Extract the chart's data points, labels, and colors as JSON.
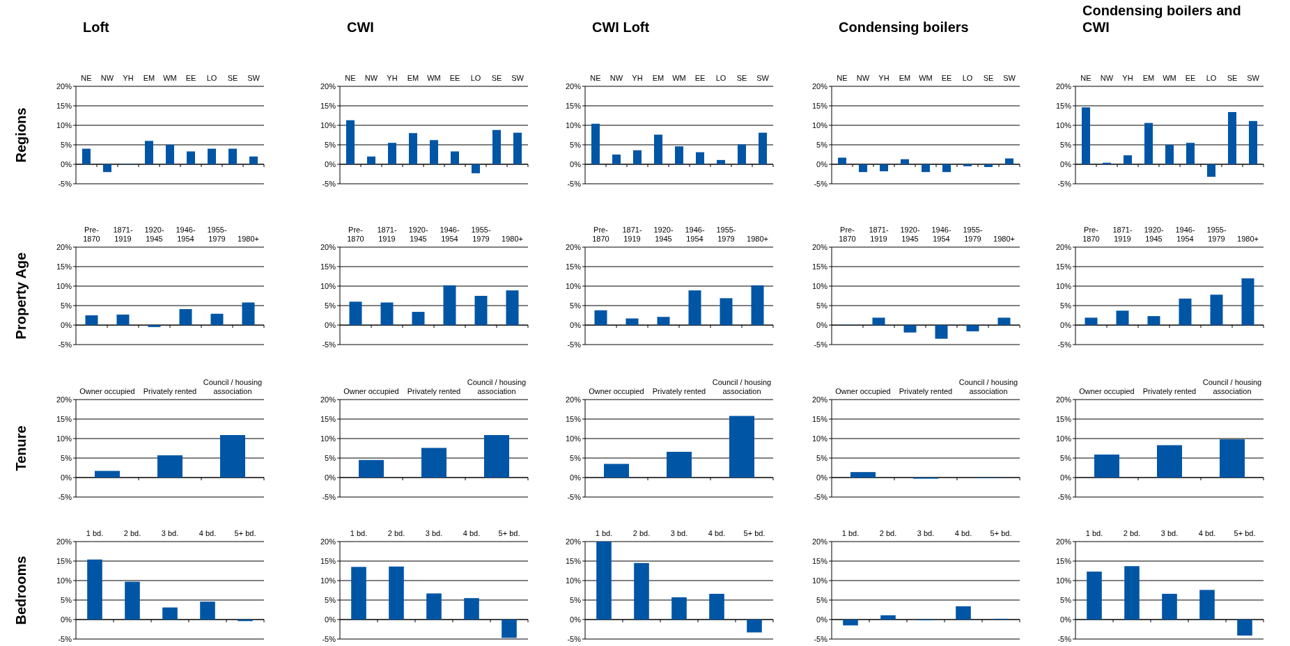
{
  "chart_data": [
    {
      "type": "bar",
      "title": "Loft",
      "ylabel": "Regions",
      "categories": [
        "NE",
        "NW",
        "YH",
        "EM",
        "WM",
        "EE",
        "LO",
        "SE",
        "SW"
      ],
      "values": [
        4,
        -2,
        0.1,
        6,
        5,
        3.3,
        4,
        4,
        2
      ],
      "color": "#0055a5",
      "ylim": [
        -5,
        20
      ],
      "yticks": [
        {
          "value": -5,
          "label": "-5%"
        },
        {
          "value": 0,
          "label": "0%"
        },
        {
          "value": 5,
          "label": "5%"
        },
        {
          "value": 10,
          "label": "10%"
        },
        {
          "value": 15,
          "label": "15%"
        },
        {
          "value": 20,
          "label": "20%"
        }
      ],
      "grid": true
    },
    {
      "type": "bar",
      "title": "CWI",
      "categories": [
        "NE",
        "NW",
        "YH",
        "EM",
        "WM",
        "EE",
        "LO",
        "SE",
        "SW"
      ],
      "values": [
        11.3,
        2,
        5.5,
        8,
        6.2,
        3.3,
        -2.3,
        8.8,
        8.1
      ],
      "color": "#0055a5",
      "ylim": [
        -5,
        20
      ],
      "yticks": [
        {
          "value": -5,
          "label": "-5%"
        },
        {
          "value": 0,
          "label": "0%"
        },
        {
          "value": 5,
          "label": "5%"
        },
        {
          "value": 10,
          "label": "10%"
        },
        {
          "value": 15,
          "label": "15%"
        },
        {
          "value": 20,
          "label": "20%"
        }
      ],
      "grid": true
    },
    {
      "type": "bar",
      "title": "CWI Loft",
      "categories": [
        "NE",
        "NW",
        "YH",
        "EM",
        "WM",
        "EE",
        "LO",
        "SE",
        "SW"
      ],
      "values": [
        10.4,
        2.5,
        3.6,
        7.6,
        4.6,
        3.1,
        1.1,
        5.1,
        8.1
      ],
      "color": "#0055a5",
      "ylim": [
        -5,
        20
      ],
      "yticks": [
        {
          "value": -5,
          "label": "-5%"
        },
        {
          "value": 0,
          "label": "0%"
        },
        {
          "value": 5,
          "label": "5%"
        },
        {
          "value": 10,
          "label": "10%"
        },
        {
          "value": 15,
          "label": "15%"
        },
        {
          "value": 20,
          "label": "20%"
        }
      ],
      "grid": true
    },
    {
      "type": "bar",
      "title": "Condensing boilers",
      "categories": [
        "NE",
        "NW",
        "YH",
        "EM",
        "WM",
        "EE",
        "LO",
        "SE",
        "SW"
      ],
      "values": [
        1.7,
        -2,
        -1.8,
        1.3,
        -2,
        -2,
        -0.5,
        -0.7,
        1.5
      ],
      "color": "#0055a5",
      "ylim": [
        -5,
        20
      ],
      "yticks": [
        {
          "value": -5,
          "label": "-5%"
        },
        {
          "value": 0,
          "label": "0%"
        },
        {
          "value": 5,
          "label": "5%"
        },
        {
          "value": 10,
          "label": "10%"
        },
        {
          "value": 15,
          "label": "15%"
        },
        {
          "value": 20,
          "label": "20%"
        }
      ],
      "grid": true
    },
    {
      "type": "bar",
      "title": "Condensing boilers and CWI",
      "categories": [
        "NE",
        "NW",
        "YH",
        "EM",
        "WM",
        "EE",
        "LO",
        "SE",
        "SW"
      ],
      "values": [
        14.6,
        0.4,
        2.3,
        10.6,
        5,
        5.5,
        -3.2,
        13.4,
        11.1
      ],
      "color": "#0055a5",
      "ylim": [
        -5,
        20
      ],
      "yticks": [
        {
          "value": -5,
          "label": "-5%"
        },
        {
          "value": 0,
          "label": "0%"
        },
        {
          "value": 5,
          "label": "5%"
        },
        {
          "value": 10,
          "label": "10%"
        },
        {
          "value": 15,
          "label": "15%"
        },
        {
          "value": 20,
          "label": "20%"
        }
      ],
      "grid": true
    },
    {
      "type": "bar",
      "ylabel": "Property Age",
      "categories": [
        "Pre-\n1870",
        "1871-\n1919",
        "1920-\n1945",
        "1946-\n1954",
        "1955-\n1979",
        "1980+"
      ],
      "values": [
        2.5,
        2.7,
        -0.5,
        4.1,
        2.9,
        5.8
      ],
      "color": "#0055a5",
      "ylim": [
        -5,
        20
      ],
      "yticks": [
        {
          "value": -5,
          "label": "-5%"
        },
        {
          "value": 0,
          "label": "0%"
        },
        {
          "value": 5,
          "label": "5%"
        },
        {
          "value": 10,
          "label": "10%"
        },
        {
          "value": 15,
          "label": "15%"
        },
        {
          "value": 20,
          "label": "20%"
        }
      ],
      "grid": true
    },
    {
      "type": "bar",
      "categories": [
        "Pre-\n1870",
        "1871-\n1919",
        "1920-\n1945",
        "1946-\n1954",
        "1955-\n1979",
        "1980+"
      ],
      "values": [
        6,
        5.8,
        3.4,
        10.2,
        7.5,
        8.9
      ],
      "color": "#0055a5",
      "ylim": [
        -5,
        20
      ],
      "yticks": [
        {
          "value": -5,
          "label": "-5%"
        },
        {
          "value": 0,
          "label": "0%"
        },
        {
          "value": 5,
          "label": "5%"
        },
        {
          "value": 10,
          "label": "10%"
        },
        {
          "value": 15,
          "label": "15%"
        },
        {
          "value": 20,
          "label": "20%"
        }
      ],
      "grid": true
    },
    {
      "type": "bar",
      "categories": [
        "Pre-\n1870",
        "1871-\n1919",
        "1920-\n1945",
        "1946-\n1954",
        "1955-\n1979",
        "1980+"
      ],
      "values": [
        3.8,
        1.7,
        2.1,
        8.9,
        6.9,
        10.2
      ],
      "color": "#0055a5",
      "ylim": [
        -5,
        20
      ],
      "yticks": [
        {
          "value": -5,
          "label": "-5%"
        },
        {
          "value": 0,
          "label": "0%"
        },
        {
          "value": 5,
          "label": "5%"
        },
        {
          "value": 10,
          "label": "10%"
        },
        {
          "value": 15,
          "label": "15%"
        },
        {
          "value": 20,
          "label": "20%"
        }
      ],
      "grid": true
    },
    {
      "type": "bar",
      "categories": [
        "Pre-\n1870",
        "1871-\n1919",
        "1920-\n1945",
        "1946-\n1954",
        "1955-\n1979",
        "1980+"
      ],
      "values": [
        0.1,
        1.9,
        -1.9,
        -3.5,
        -1.6,
        1.9
      ],
      "color": "#0055a5",
      "ylim": [
        -5,
        20
      ],
      "yticks": [
        {
          "value": -5,
          "label": "-5%"
        },
        {
          "value": 0,
          "label": "0%"
        },
        {
          "value": 5,
          "label": "5%"
        },
        {
          "value": 10,
          "label": "10%"
        },
        {
          "value": 15,
          "label": "15%"
        },
        {
          "value": 20,
          "label": "20%"
        }
      ],
      "grid": true
    },
    {
      "type": "bar",
      "categories": [
        "Pre-\n1870",
        "1871-\n1919",
        "1920-\n1945",
        "1946-\n1954",
        "1955-\n1979",
        "1980+"
      ],
      "values": [
        1.9,
        3.7,
        2.3,
        6.8,
        7.8,
        12
      ],
      "color": "#0055a5",
      "ylim": [
        -5,
        20
      ],
      "yticks": [
        {
          "value": -5,
          "label": "-5%"
        },
        {
          "value": 0,
          "label": "0%"
        },
        {
          "value": 5,
          "label": "5%"
        },
        {
          "value": 10,
          "label": "10%"
        },
        {
          "value": 15,
          "label": "15%"
        },
        {
          "value": 20,
          "label": "20%"
        }
      ],
      "grid": true
    },
    {
      "type": "bar",
      "ylabel": "Tenure",
      "categories": [
        "Owner occupied",
        "Privately rented",
        "Council / housing\nassociation"
      ],
      "values": [
        1.7,
        5.7,
        10.9
      ],
      "color": "#0055a5",
      "ylim": [
        -5,
        20
      ],
      "yticks": [
        {
          "value": -5,
          "label": "-5%"
        },
        {
          "value": 0,
          "label": "0%"
        },
        {
          "value": 5,
          "label": "5%"
        },
        {
          "value": 10,
          "label": "10%"
        },
        {
          "value": 15,
          "label": "15%"
        },
        {
          "value": 20,
          "label": "20%"
        }
      ],
      "grid": true
    },
    {
      "type": "bar",
      "categories": [
        "Owner occupied",
        "Privately rented",
        "Council / housing\nassociation"
      ],
      "values": [
        4.5,
        7.6,
        10.9
      ],
      "color": "#0055a5",
      "ylim": [
        -5,
        20
      ],
      "yticks": [
        {
          "value": -5,
          "label": "-5%"
        },
        {
          "value": 0,
          "label": "0%"
        },
        {
          "value": 5,
          "label": "5%"
        },
        {
          "value": 10,
          "label": "10%"
        },
        {
          "value": 15,
          "label": "15%"
        },
        {
          "value": 20,
          "label": "20%"
        }
      ],
      "grid": true
    },
    {
      "type": "bar",
      "categories": [
        "Owner occupied",
        "Privately rented",
        "Council / housing\nassociation"
      ],
      "values": [
        3.5,
        6.6,
        15.8
      ],
      "color": "#0055a5",
      "ylim": [
        -5,
        20
      ],
      "yticks": [
        {
          "value": -5,
          "label": "-5%"
        },
        {
          "value": 0,
          "label": "0%"
        },
        {
          "value": 5,
          "label": "5%"
        },
        {
          "value": 10,
          "label": "10%"
        },
        {
          "value": 15,
          "label": "15%"
        },
        {
          "value": 20,
          "label": "20%"
        }
      ],
      "grid": true
    },
    {
      "type": "bar",
      "categories": [
        "Owner occupied",
        "Privately rented",
        "Council / housing\nassociation"
      ],
      "values": [
        1.4,
        -0.3,
        -0.1
      ],
      "color": "#0055a5",
      "ylim": [
        -5,
        20
      ],
      "yticks": [
        {
          "value": -5,
          "label": "-5%"
        },
        {
          "value": 0,
          "label": "0%"
        },
        {
          "value": 5,
          "label": "5%"
        },
        {
          "value": 10,
          "label": "10%"
        },
        {
          "value": 15,
          "label": "15%"
        },
        {
          "value": 20,
          "label": "20%"
        }
      ],
      "grid": true
    },
    {
      "type": "bar",
      "categories": [
        "Owner occupied",
        "Privately rented",
        "Council / housing\nassociation"
      ],
      "values": [
        5.9,
        8.3,
        9.8
      ],
      "color": "#0055a5",
      "ylim": [
        -5,
        20
      ],
      "yticks": [
        {
          "value": -5,
          "label": "-5%"
        },
        {
          "value": 0,
          "label": "0%"
        },
        {
          "value": 5,
          "label": "5%"
        },
        {
          "value": 10,
          "label": "10%"
        },
        {
          "value": 15,
          "label": "15%"
        },
        {
          "value": 20,
          "label": "20%"
        }
      ],
      "grid": true
    },
    {
      "type": "bar",
      "ylabel": "Bedrooms",
      "categories": [
        "1 bd.",
        "2 bd.",
        "3 bd.",
        "4 bd.",
        "5+ bd."
      ],
      "values": [
        15.4,
        9.7,
        3.1,
        4.6,
        -0.4
      ],
      "color": "#0055a5",
      "ylim": [
        -5,
        20
      ],
      "yticks": [
        {
          "value": -5,
          "label": "-5%"
        },
        {
          "value": 0,
          "label": "0%"
        },
        {
          "value": 5,
          "label": "5%"
        },
        {
          "value": 10,
          "label": "10%"
        },
        {
          "value": 15,
          "label": "15%"
        },
        {
          "value": 20,
          "label": "20%"
        }
      ],
      "grid": true
    },
    {
      "type": "bar",
      "categories": [
        "1 bd.",
        "2 bd.",
        "3 bd.",
        "4 bd.",
        "5+ bd."
      ],
      "values": [
        13.5,
        13.6,
        6.7,
        5.5,
        -4.7
      ],
      "color": "#0055a5",
      "ylim": [
        -5,
        20
      ],
      "yticks": [
        {
          "value": -5,
          "label": "-5%"
        },
        {
          "value": 0,
          "label": "0%"
        },
        {
          "value": 5,
          "label": "5%"
        },
        {
          "value": 10,
          "label": "10%"
        },
        {
          "value": 15,
          "label": "15%"
        },
        {
          "value": 20,
          "label": "20%"
        }
      ],
      "grid": true
    },
    {
      "type": "bar",
      "categories": [
        "1 bd.",
        "2 bd.",
        "3 bd.",
        "4 bd.",
        "5+ bd."
      ],
      "values": [
        20,
        14.5,
        5.7,
        6.6,
        -3.3
      ],
      "color": "#0055a5",
      "ylim": [
        -5,
        20
      ],
      "yticks": [
        {
          "value": -5,
          "label": "-5%"
        },
        {
          "value": 0,
          "label": "0%"
        },
        {
          "value": 5,
          "label": "5%"
        },
        {
          "value": 10,
          "label": "10%"
        },
        {
          "value": 15,
          "label": "15%"
        },
        {
          "value": 20,
          "label": "20%"
        }
      ],
      "grid": true
    },
    {
      "type": "bar",
      "categories": [
        "1 bd.",
        "2 bd.",
        "3 bd.",
        "4 bd.",
        "5+ bd."
      ],
      "values": [
        -1.5,
        1.1,
        -0.2,
        3.4,
        0.2
      ],
      "color": "#0055a5",
      "ylim": [
        -5,
        20
      ],
      "yticks": [
        {
          "value": -5,
          "label": "-5%"
        },
        {
          "value": 0,
          "label": "0%"
        },
        {
          "value": 5,
          "label": "5%"
        },
        {
          "value": 10,
          "label": "10%"
        },
        {
          "value": 15,
          "label": "15%"
        },
        {
          "value": 20,
          "label": "20%"
        }
      ],
      "grid": true
    },
    {
      "type": "bar",
      "categories": [
        "1 bd.",
        "2 bd.",
        "3 bd.",
        "4 bd.",
        "5+ bd."
      ],
      "values": [
        12.3,
        13.7,
        6.6,
        7.6,
        -4.1
      ],
      "color": "#0055a5",
      "ylim": [
        -5,
        20
      ],
      "yticks": [
        {
          "value": -5,
          "label": "-5%"
        },
        {
          "value": 0,
          "label": "0%"
        },
        {
          "value": 5,
          "label": "5%"
        },
        {
          "value": 10,
          "label": "10%"
        },
        {
          "value": 15,
          "label": "15%"
        },
        {
          "value": 20,
          "label": "20%"
        }
      ],
      "grid": true
    }
  ]
}
